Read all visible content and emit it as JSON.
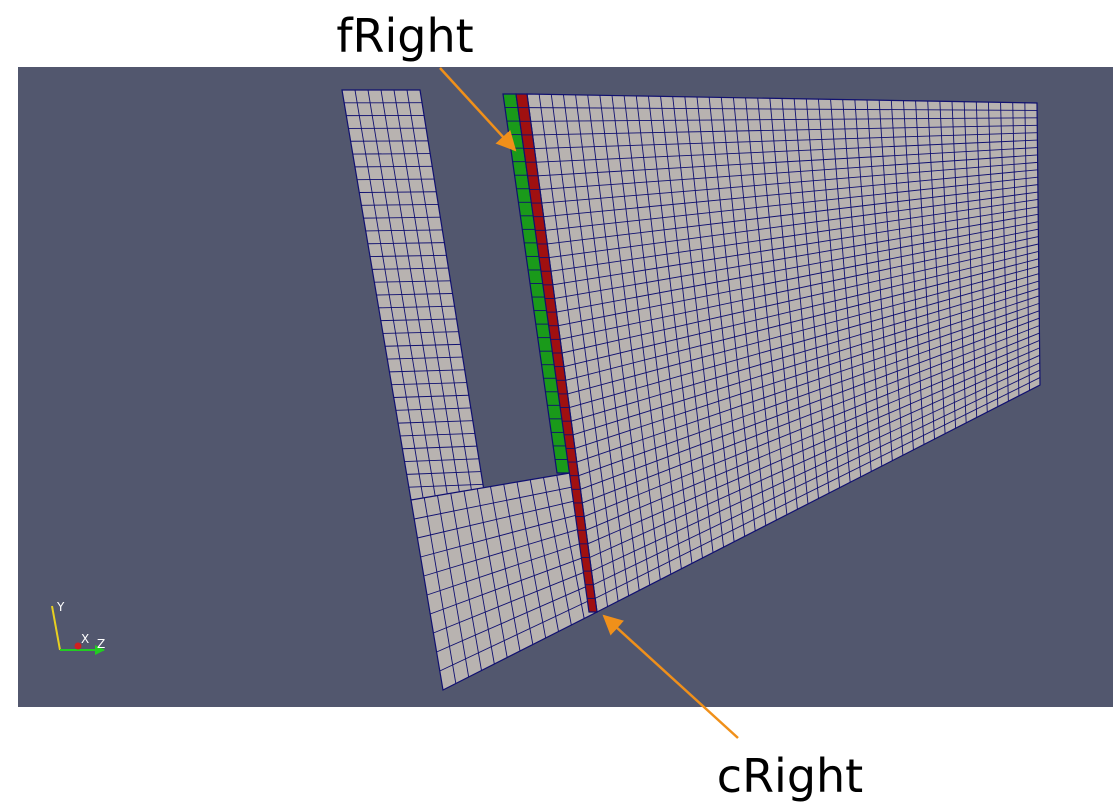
{
  "labels": {
    "top": "fRight",
    "bottom": "cRight"
  },
  "axes": {
    "y": "Y",
    "x": "X",
    "z": "Z"
  }
}
